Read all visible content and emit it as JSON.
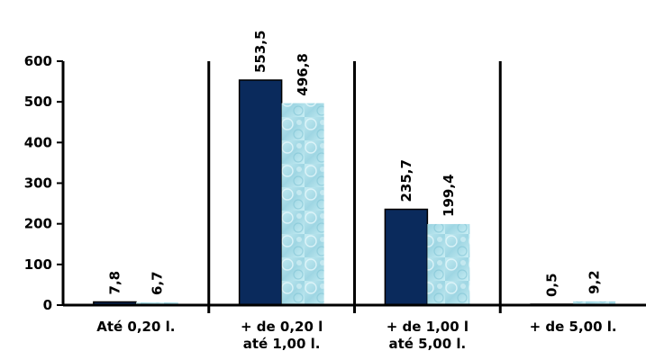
{
  "chart_data": {
    "type": "bar",
    "title": "",
    "xlabel": "",
    "ylabel": "",
    "ylim": [
      0,
      600
    ],
    "yticks": [
      "0",
      "100",
      "200",
      "300",
      "400",
      "500",
      "600"
    ],
    "ytick_values": [
      0,
      100,
      200,
      300,
      400,
      500,
      600
    ],
    "grid": false,
    "legend": "none",
    "categories": [
      [
        "Até 0,20 l."
      ],
      [
        "+ de 0,20 l",
        "até 1,00 l."
      ],
      [
        "+ de 1,00 l",
        "até 5,00 l."
      ],
      [
        "+ de 5,00 l."
      ]
    ],
    "series": [
      {
        "values": [
          7.8,
          553.5,
          235.7,
          0.5
        ],
        "labels": [
          "7,8",
          "553,5",
          "235,7",
          "0,5"
        ],
        "color": "#0a2a5c"
      },
      {
        "values": [
          6.7,
          496.8,
          199.4,
          9.2
        ],
        "labels": [
          "6,7",
          "496,8",
          "199,4",
          "9,2"
        ],
        "color": "#a9dde8"
      }
    ]
  }
}
